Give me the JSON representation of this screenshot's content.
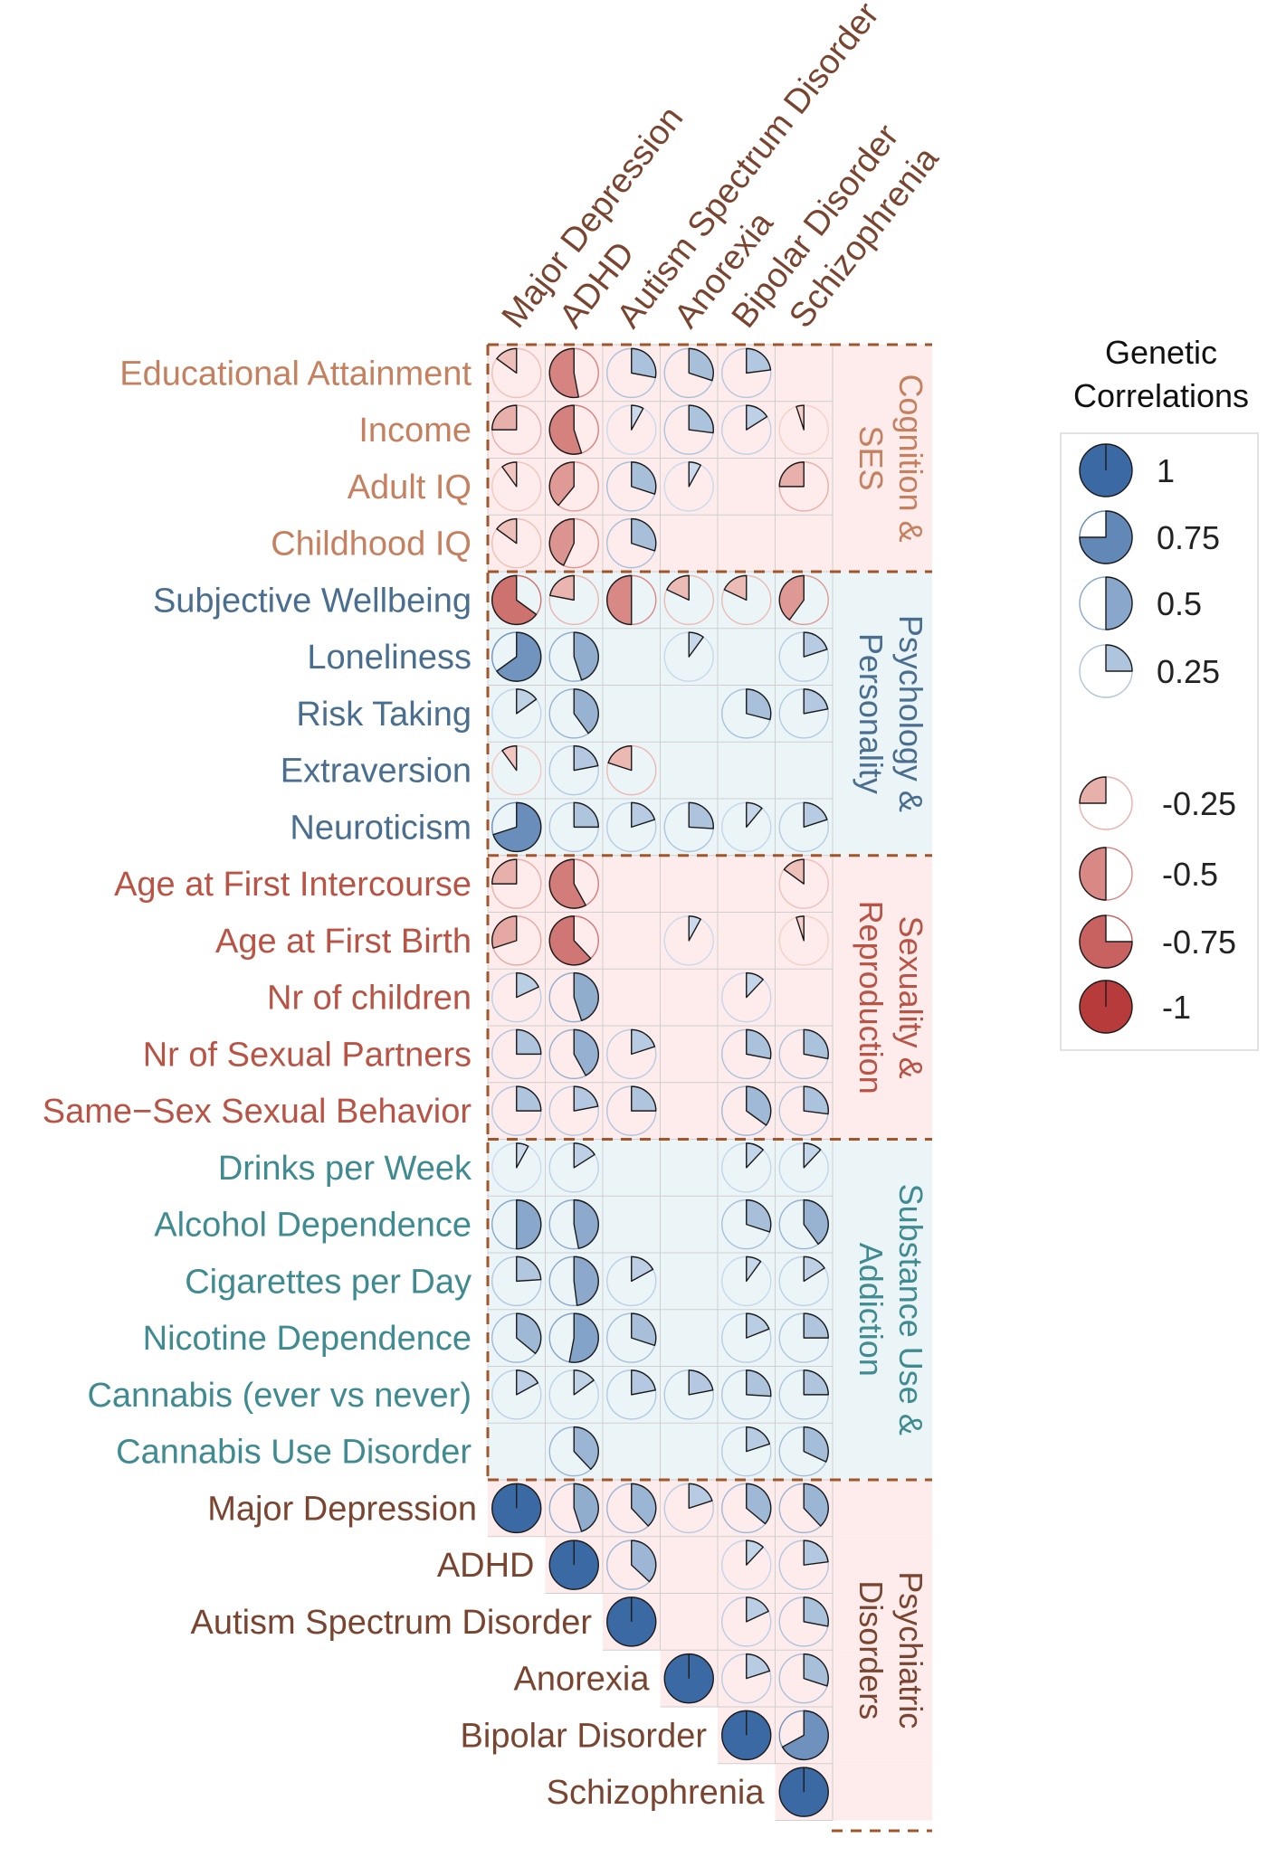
{
  "chart_data": {
    "type": "heatmap",
    "title": "Genetic Correlations",
    "columns": [
      "Major Depression",
      "ADHD",
      "Autism Spectrum Disorder",
      "Anorexia",
      "Bipolar Disorder",
      "Schizophrenia"
    ],
    "rows": [
      "Educational Attainment",
      "Income",
      "Adult IQ",
      "Childhood IQ",
      "Subjective Wellbeing",
      "Loneliness",
      "Risk Taking",
      "Extraversion",
      "Neuroticism",
      "Age at First Intercourse",
      "Age at First Birth",
      "Nr of children",
      "Nr of Sexual Partners",
      "Same−Sex Sexual Behavior",
      "Drinks per Week",
      "Alcohol Dependence",
      "Cigarettes per Day",
      "Nicotine Dependence",
      "Cannabis (ever vs never)",
      "Cannabis Use Disorder",
      "Major Depression",
      "ADHD",
      "Autism Spectrum Disorder",
      "Anorexia",
      "Bipolar Disorder",
      "Schizophrenia"
    ],
    "values": [
      [
        -0.15,
        -0.53,
        0.28,
        0.3,
        0.23,
        null
      ],
      [
        -0.25,
        -0.55,
        0.08,
        0.27,
        0.16,
        -0.05
      ],
      [
        -0.1,
        -0.39,
        0.3,
        0.08,
        null,
        -0.25
      ],
      [
        -0.15,
        -0.43,
        0.3,
        null,
        null,
        null
      ],
      [
        -0.65,
        -0.22,
        -0.5,
        -0.18,
        -0.18,
        -0.4
      ],
      [
        0.65,
        0.45,
        null,
        0.1,
        null,
        0.2
      ],
      [
        0.15,
        0.4,
        null,
        null,
        0.29,
        0.22
      ],
      [
        -0.1,
        0.22,
        -0.2,
        null,
        null,
        null
      ],
      [
        0.7,
        0.25,
        0.2,
        0.26,
        0.11,
        0.2
      ],
      [
        -0.25,
        -0.58,
        null,
        null,
        null,
        -0.15
      ],
      [
        -0.3,
        -0.62,
        null,
        0.08,
        null,
        -0.05
      ],
      [
        0.18,
        0.45,
        null,
        null,
        0.12,
        null
      ],
      [
        0.25,
        0.42,
        0.2,
        null,
        0.28,
        0.28
      ],
      [
        0.25,
        0.22,
        0.25,
        null,
        0.35,
        0.27
      ],
      [
        0.08,
        0.16,
        null,
        null,
        0.12,
        0.12
      ],
      [
        0.5,
        0.47,
        null,
        null,
        0.3,
        0.4
      ],
      [
        0.24,
        0.48,
        0.17,
        null,
        0.1,
        0.16
      ],
      [
        0.36,
        0.53,
        0.3,
        null,
        0.19,
        0.25
      ],
      [
        0.17,
        0.15,
        0.22,
        0.22,
        0.26,
        0.25
      ],
      [
        null,
        0.38,
        null,
        null,
        0.2,
        0.32
      ],
      [
        1,
        0.45,
        0.38,
        0.2,
        0.36,
        0.38
      ],
      [
        null,
        1,
        0.37,
        null,
        0.12,
        0.23
      ],
      [
        null,
        null,
        1,
        null,
        0.18,
        0.28
      ],
      [
        null,
        null,
        null,
        1,
        0.2,
        0.3
      ],
      [
        null,
        null,
        null,
        null,
        1,
        0.67
      ],
      [
        null,
        null,
        null,
        null,
        null,
        1
      ]
    ],
    "groups": [
      {
        "name": "Cognition & SES",
        "rows": [
          0,
          3
        ],
        "color": "#c5815f",
        "shade": "#fdeceb"
      },
      {
        "name": "Psychology & Personality",
        "rows": [
          4,
          8
        ],
        "color": "#4a6e8f",
        "shade": "#ebf5f8"
      },
      {
        "name": "Sexuality & Reproduction",
        "rows": [
          9,
          13
        ],
        "color": "#b85445",
        "shade": "#fdeceb"
      },
      {
        "name": "Substance Use & Addiction",
        "rows": [
          14,
          19
        ],
        "color": "#3f8b91",
        "shade": "#ebf5f8"
      },
      {
        "name": "Psychiatric Disorders",
        "rows": [
          20,
          25
        ],
        "color": "#7a4530",
        "shade": "#fdeceb"
      }
    ],
    "legend": {
      "title": "Genetic Correlations",
      "entries": [
        {
          "label": "1",
          "value": 1
        },
        {
          "label": "0.75",
          "value": 0.75
        },
        {
          "label": "0.5",
          "value": 0.5
        },
        {
          "label": "0.25",
          "value": 0.25
        },
        {
          "label": "-0.25",
          "value": -0.25
        },
        {
          "label": "-0.5",
          "value": -0.5
        },
        {
          "label": "-0.75",
          "value": -0.75
        },
        {
          "label": "-1",
          "value": -1
        }
      ],
      "placement": "right"
    },
    "colors": {
      "column_label": "#7a4530",
      "positive_low": "#d6e4f2",
      "positive_high": "#3b69a3",
      "negative_low": "#f8d7d0",
      "negative_high": "#b83b3b",
      "grid": "#cfcfcf",
      "separator": "#a0562a"
    }
  }
}
